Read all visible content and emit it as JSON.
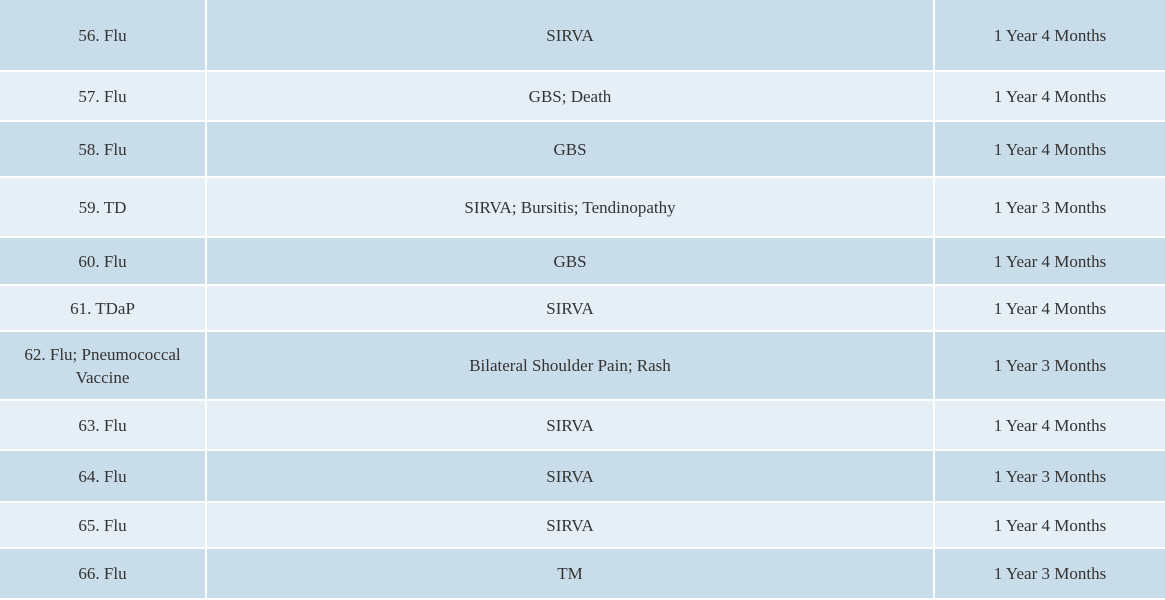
{
  "table": {
    "rows": [
      [
        "56. Flu",
        "SIRVA",
        "1 Year 4 Months"
      ],
      [
        "57. Flu",
        "GBS; Death",
        "1 Year 4 Months"
      ],
      [
        "58. Flu",
        "GBS",
        "1 Year 4 Months"
      ],
      [
        "59. TD",
        "SIRVA; Bursitis; Tendinopathy",
        "1 Year 3 Months"
      ],
      [
        "60. Flu",
        "GBS",
        "1 Year 4 Months"
      ],
      [
        "61. TDaP",
        "SIRVA",
        "1 Year 4 Months"
      ],
      [
        "62. Flu; Pneumococcal Vaccine",
        "Bilateral Shoulder Pain; Rash",
        "1 Year 3 Months"
      ],
      [
        "63. Flu",
        "SIRVA",
        "1 Year 4 Months"
      ],
      [
        "64. Flu",
        "SIRVA",
        "1 Year 3 Months"
      ],
      [
        "65. Flu",
        "SIRVA",
        "1 Year 4 Months"
      ],
      [
        "66. Flu",
        "TM",
        "1 Year 3 Months"
      ]
    ]
  }
}
